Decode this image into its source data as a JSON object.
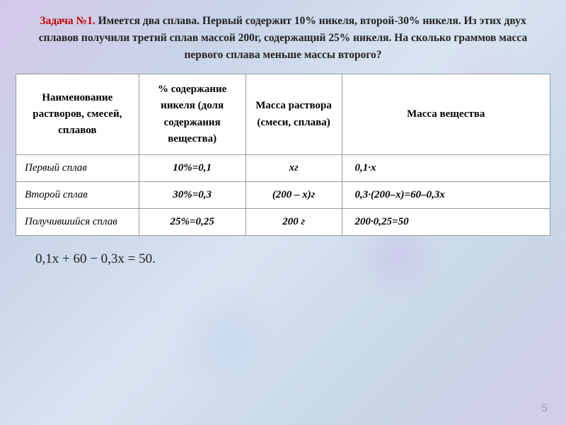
{
  "title_prefix_red": "Задача №1.",
  "title_rest": " Имеется два сплава. Первый содержит 10% никеля, второй-30% никеля. Из этих двух сплавов получили третий сплав массой 200г, содержащий 25% никеля. На сколько граммов масса первого сплава меньше массы второго?",
  "headers": {
    "c1": "Наименование растворов, смесей, сплавов",
    "c2": "% содержание никеля (доля содержания вещества)",
    "c3": "Масса раствора (смеси, сплава)",
    "c4": "Масса вещества"
  },
  "rows": {
    "r1": {
      "label": "Первый сплав",
      "pct": "10%=0,1",
      "mass": "хг",
      "subst": "0,1·x"
    },
    "r2": {
      "label": "Второй сплав",
      "pct": "30%=0,3",
      "mass": "(200 – х)г",
      "subst": "0,3·(200–х)=60–0,3х"
    },
    "r3": {
      "label": "Получившийся сплав",
      "pct": "25%=0,25",
      "mass": "200 г",
      "subst": "200·0,25=50"
    }
  },
  "equation": "0,1x + 60 − 0,3x = 50.",
  "pagenum": "5",
  "colors": {
    "title_red": "#c00000",
    "text": "#222222",
    "border": "#999999",
    "table_bg": "#ffffff"
  }
}
